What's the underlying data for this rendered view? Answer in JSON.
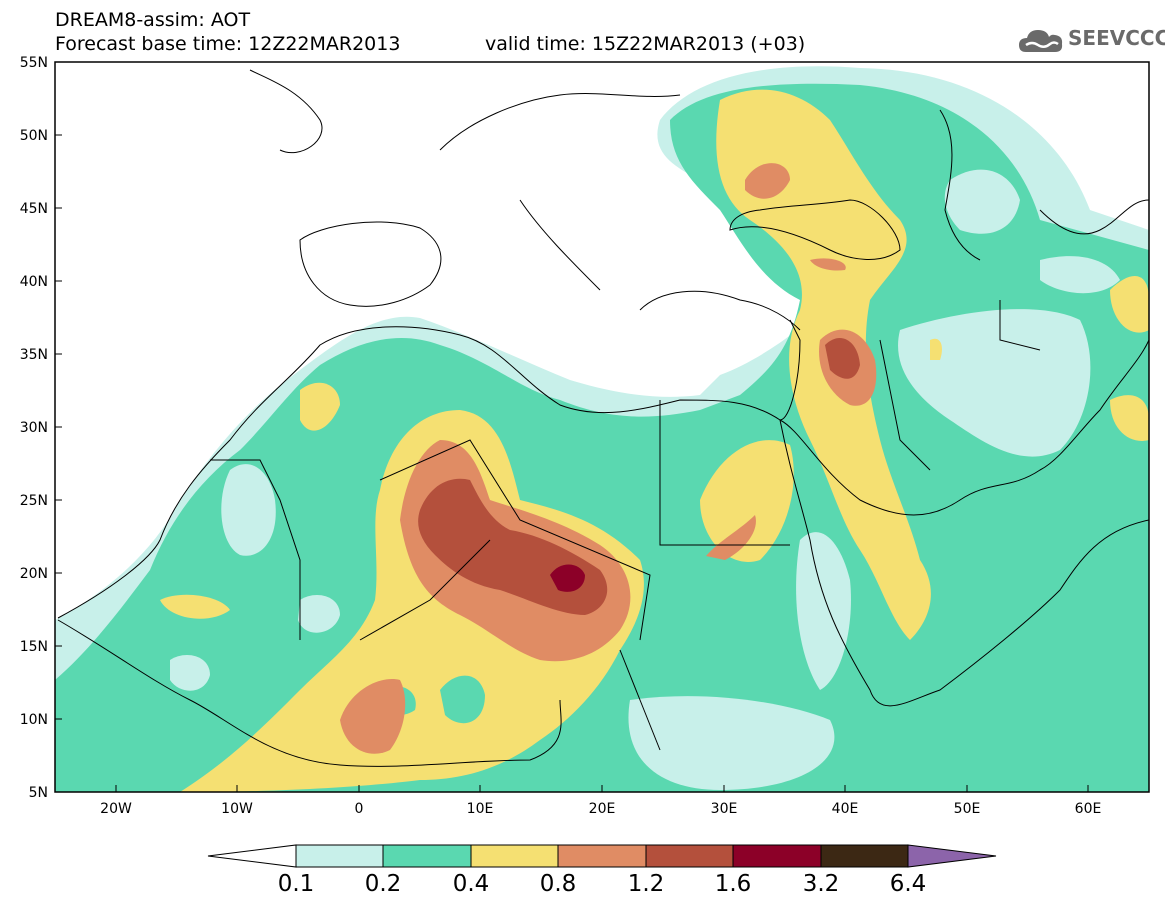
{
  "header": {
    "line1": "DREAM8-assim: AOT",
    "base_time": "Forecast base time: 12Z22MAR2013",
    "valid_time": "valid time: 15Z22MAR2013 (+03)"
  },
  "logo": {
    "text": "SEEVCCC",
    "icon": "cloud-icon"
  },
  "map": {
    "lat_labels": [
      "55N",
      "50N",
      "45N",
      "40N",
      "35N",
      "30N",
      "25N",
      "20N",
      "15N",
      "10N",
      "5N"
    ],
    "lon_labels": [
      "20W",
      "10W",
      "0",
      "10E",
      "20E",
      "30E",
      "40E",
      "50E",
      "60E"
    ],
    "extent": {
      "lon_min": -25,
      "lon_max": 65,
      "lat_min": 5,
      "lat_max": 55
    }
  },
  "colorbar": {
    "labels": [
      "0.1",
      "0.2",
      "0.4",
      "0.8",
      "1.2",
      "1.6",
      "3.2",
      "6.4"
    ],
    "colors": [
      "#ffffff",
      "#c8f0ea",
      "#5ad8b0",
      "#f5e072",
      "#e08c64",
      "#b4503c",
      "#8c0028",
      "#3c2814",
      "#8c64aa"
    ]
  }
}
